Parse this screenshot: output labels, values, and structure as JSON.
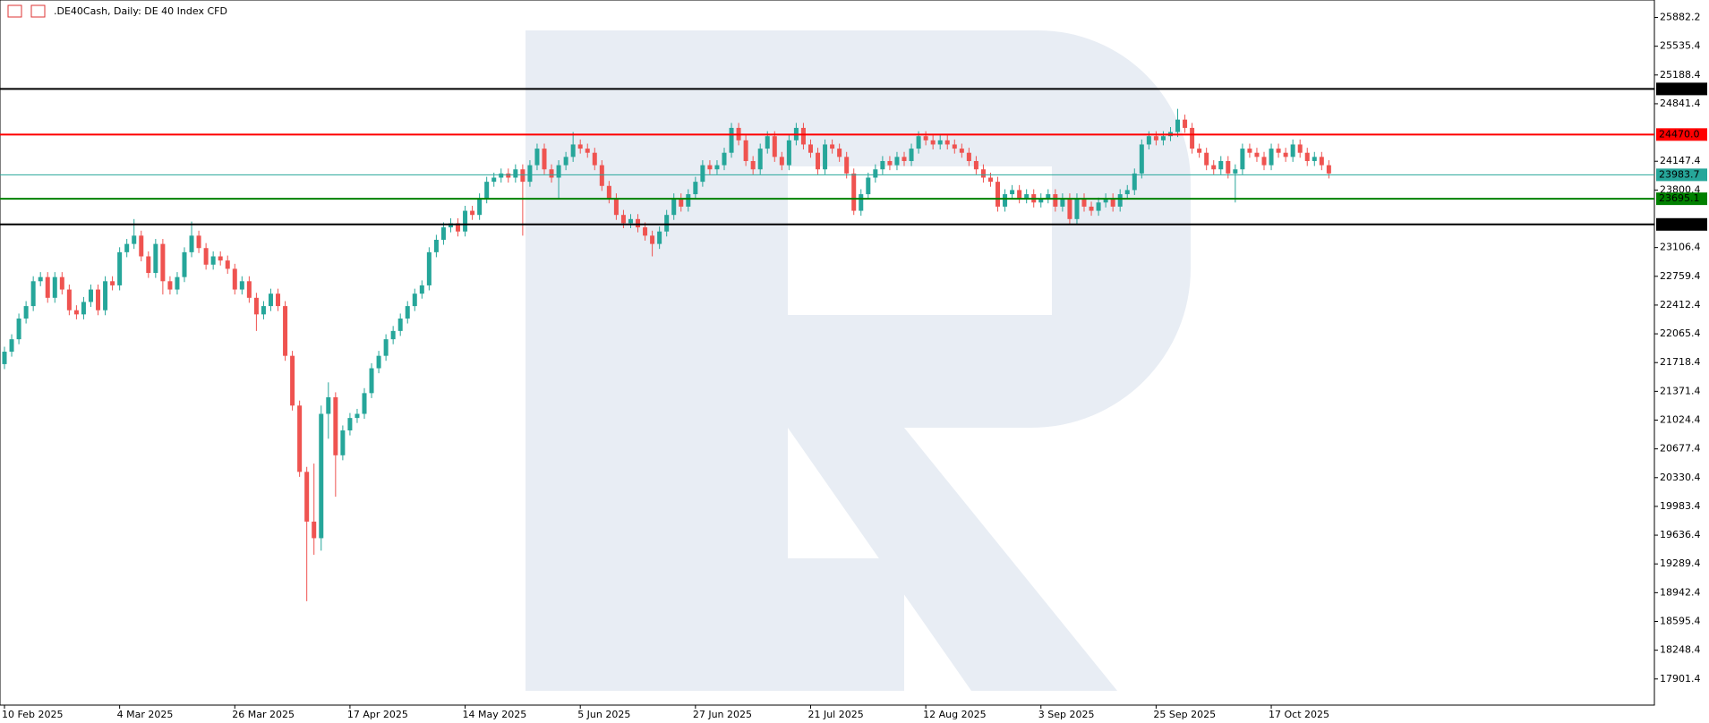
{
  "chart_data": {
    "type": "candlestick",
    "title": ".DE40Cash, Daily:  DE 40 Index CFD",
    "categories": [
      "10 Feb 2025",
      null,
      null,
      null,
      null,
      null,
      null,
      null,
      null,
      null,
      null,
      null,
      null,
      null,
      null,
      null,
      "4 Mar 2025",
      null,
      null,
      null,
      null,
      null,
      null,
      null,
      null,
      null,
      null,
      null,
      null,
      null,
      null,
      null,
      "26 Mar 2025",
      null,
      null,
      null,
      null,
      null,
      null,
      null,
      null,
      null,
      null,
      null,
      null,
      null,
      null,
      null,
      "17 Apr 2025",
      null,
      null,
      null,
      null,
      null,
      null,
      null,
      null,
      null,
      null,
      null,
      null,
      null,
      null,
      null,
      "14 May 2025",
      null,
      null,
      null,
      null,
      null,
      null,
      null,
      null,
      null,
      null,
      null,
      null,
      null,
      null,
      null,
      "5 Jun 2025",
      null,
      null,
      null,
      null,
      null,
      null,
      null,
      null,
      null,
      null,
      null,
      null,
      null,
      null,
      null,
      "27 Jun 2025",
      null,
      null,
      null,
      null,
      null,
      null,
      null,
      null,
      null,
      null,
      null,
      null,
      null,
      null,
      null,
      "21 Jul 2025",
      null,
      null,
      null,
      null,
      null,
      null,
      null,
      null,
      null,
      null,
      null,
      null,
      null,
      null,
      null,
      "12 Aug 2025",
      null,
      null,
      null,
      null,
      null,
      null,
      null,
      null,
      null,
      null,
      null,
      null,
      null,
      null,
      null,
      "3 Sep 2025",
      null,
      null,
      null,
      null,
      null,
      null,
      null,
      null,
      null,
      null,
      null,
      null,
      null,
      null,
      null,
      "25 Sep 2025",
      null,
      null,
      null,
      null,
      null,
      null,
      null,
      null,
      null,
      null,
      null,
      null,
      null,
      null,
      null,
      "17 Oct 2025",
      null,
      null,
      null,
      null,
      null,
      null,
      null,
      null
    ],
    "open": [
      21700,
      21850,
      22000,
      22250,
      22400,
      22700,
      22750,
      22500,
      22750,
      22600,
      22350,
      22300,
      22450,
      22600,
      22350,
      22700,
      22650,
      23050,
      23150,
      23250,
      23000,
      22800,
      23150,
      22700,
      22600,
      22750,
      23050,
      23250,
      23100,
      22900,
      23000,
      22950,
      22850,
      22600,
      22700,
      22500,
      22300,
      22400,
      22550,
      22400,
      21800,
      21200,
      20400,
      19800,
      19600,
      21100,
      21300,
      20600,
      20900,
      21050,
      21100,
      21350,
      21650,
      21800,
      22000,
      22100,
      22250,
      22400,
      22550,
      22650,
      23050,
      23200,
      23350,
      23400,
      23300,
      23550,
      23500,
      23700,
      23900,
      23950,
      24000,
      23950,
      24050,
      23900,
      24100,
      24300,
      24050,
      23950,
      24100,
      24200,
      24350,
      24300,
      24250,
      24100,
      23850,
      23700,
      23500,
      23400,
      23450,
      23350,
      23250,
      23150,
      23300,
      23500,
      23700,
      23600,
      23750,
      23900,
      24100,
      24050,
      24100,
      24250,
      24550,
      24400,
      24150,
      24050,
      24300,
      24450,
      24200,
      24100,
      24400,
      24550,
      24350,
      24250,
      24050,
      24350,
      24300,
      24200,
      24000,
      23550,
      23750,
      23950,
      24050,
      24150,
      24100,
      24200,
      24150,
      24300,
      24450,
      24400,
      24350,
      24400,
      24350,
      24300,
      24250,
      24150,
      24050,
      23950,
      23900,
      23600,
      23750,
      23800,
      23700,
      23750,
      23650,
      23700,
      23750,
      23600,
      23700,
      23450,
      23700,
      23600,
      23550,
      23650,
      23700,
      23600,
      23750,
      23800,
      24000,
      24350,
      24450,
      24400,
      24450,
      24500,
      24650,
      24550,
      24300,
      24250,
      24100,
      24050,
      24150,
      24000,
      24050,
      24300,
      24250,
      24200,
      24100,
      24300,
      24250,
      24200,
      24350,
      24250,
      24150,
      24200,
      24100
    ],
    "high": [
      21910,
      22060,
      22310,
      22460,
      22760,
      22810,
      22810,
      22810,
      22810,
      22660,
      22410,
      22510,
      22660,
      22660,
      22760,
      22760,
      23110,
      23210,
      23450,
      23310,
      23060,
      23210,
      23210,
      22760,
      22810,
      23110,
      23420,
      23310,
      23160,
      23060,
      23060,
      23010,
      22910,
      22760,
      22760,
      22560,
      22460,
      22610,
      22610,
      22460,
      21860,
      21260,
      20460,
      20500,
      21200,
      21480,
      21360,
      20960,
      21110,
      21160,
      21410,
      21710,
      21860,
      22060,
      22160,
      22310,
      22460,
      22610,
      22710,
      23110,
      23260,
      23410,
      23460,
      23460,
      23610,
      23610,
      23760,
      23960,
      24010,
      24060,
      24060,
      24110,
      24110,
      24160,
      24360,
      24360,
      24110,
      24160,
      24260,
      24500,
      24410,
      24360,
      24310,
      24160,
      23910,
      23760,
      23560,
      23510,
      23510,
      23410,
      23310,
      23360,
      23560,
      23760,
      23760,
      23810,
      23960,
      24160,
      24160,
      24160,
      24310,
      24610,
      24610,
      24460,
      24210,
      24360,
      24510,
      24510,
      24260,
      24460,
      24610,
      24610,
      24410,
      24310,
      24410,
      24410,
      24360,
      24260,
      24060,
      23810,
      24010,
      24110,
      24210,
      24210,
      24260,
      24260,
      24360,
      24510,
      24510,
      24460,
      24460,
      24460,
      24410,
      24360,
      24310,
      24210,
      24110,
      24010,
      23960,
      23810,
      23860,
      23860,
      23810,
      23810,
      23760,
      23810,
      23810,
      23760,
      23760,
      23760,
      23760,
      23660,
      23710,
      23760,
      23760,
      23810,
      23860,
      24060,
      24410,
      24510,
      24510,
      24510,
      24560,
      24780,
      24710,
      24610,
      24360,
      24310,
      24160,
      24210,
      24210,
      24110,
      24360,
      24360,
      24310,
      24260,
      24360,
      24360,
      24310,
      24410,
      24410,
      24310,
      24260,
      24260,
      24160
    ],
    "low": [
      21640,
      21790,
      21940,
      22190,
      22340,
      22640,
      22440,
      22440,
      22540,
      22290,
      22240,
      22240,
      22390,
      22290,
      22290,
      22590,
      22590,
      22990,
      23090,
      22940,
      22740,
      22740,
      22540,
      22540,
      22540,
      22690,
      22990,
      23040,
      22840,
      22840,
      22890,
      22790,
      22540,
      22540,
      22440,
      22100,
      22240,
      22340,
      22340,
      21740,
      21140,
      20340,
      18840,
      19400,
      19450,
      20800,
      20100,
      20540,
      20840,
      20990,
      21040,
      21290,
      21590,
      21740,
      21940,
      22040,
      22190,
      22340,
      22490,
      22590,
      22990,
      23140,
      23290,
      23240,
      23240,
      23440,
      23440,
      23640,
      23840,
      23890,
      23890,
      23890,
      23250,
      23840,
      24040,
      23990,
      23890,
      23700,
      24040,
      24140,
      24240,
      24190,
      24040,
      23790,
      23640,
      23440,
      23340,
      23340,
      23290,
      23190,
      23000,
      23090,
      23240,
      23440,
      23540,
      23540,
      23690,
      23840,
      23990,
      23990,
      24040,
      24190,
      24340,
      24090,
      23990,
      23990,
      24240,
      24140,
      24040,
      24040,
      24340,
      24290,
      24190,
      23990,
      23990,
      24240,
      24140,
      23940,
      23500,
      23490,
      23690,
      23890,
      23990,
      24040,
      24040,
      24090,
      24090,
      24240,
      24340,
      24290,
      24290,
      24290,
      24240,
      24190,
      24090,
      23990,
      23890,
      23840,
      23540,
      23540,
      23690,
      23640,
      23640,
      23590,
      23590,
      23640,
      23540,
      23540,
      23390,
      23390,
      23540,
      23490,
      23490,
      23590,
      23540,
      23540,
      23690,
      23740,
      23940,
      24290,
      24340,
      24340,
      24390,
      24440,
      24490,
      24240,
      24190,
      24040,
      23990,
      23990,
      23940,
      23650,
      23990,
      24190,
      24140,
      24040,
      24040,
      24190,
      24140,
      24140,
      24190,
      24090,
      24090,
      24040,
      23940
    ],
    "close": [
      21850,
      22000,
      22250,
      22400,
      22700,
      22750,
      22500,
      22750,
      22600,
      22350,
      22300,
      22450,
      22600,
      22350,
      22700,
      22650,
      23050,
      23150,
      23250,
      23000,
      22800,
      23150,
      22700,
      22600,
      22750,
      23050,
      23250,
      23100,
      22900,
      23000,
      22950,
      22850,
      22600,
      22700,
      22500,
      22300,
      22400,
      22550,
      22400,
      21800,
      21200,
      20400,
      19800,
      19600,
      21100,
      21300,
      20600,
      20900,
      21050,
      21100,
      21350,
      21650,
      21800,
      22000,
      22100,
      22250,
      22400,
      22550,
      22650,
      23050,
      23200,
      23350,
      23400,
      23300,
      23550,
      23500,
      23700,
      23900,
      23950,
      24000,
      23950,
      24050,
      23900,
      24100,
      24300,
      24050,
      23950,
      24100,
      24200,
      24350,
      24300,
      24250,
      24100,
      23850,
      23700,
      23500,
      23400,
      23450,
      23350,
      23250,
      23150,
      23300,
      23500,
      23700,
      23600,
      23750,
      23900,
      24100,
      24050,
      24100,
      24250,
      24550,
      24400,
      24150,
      24050,
      24300,
      24450,
      24200,
      24100,
      24400,
      24550,
      24350,
      24250,
      24050,
      24350,
      24300,
      24200,
      24000,
      23550,
      23750,
      23950,
      24050,
      24150,
      24100,
      24200,
      24150,
      24300,
      24450,
      24400,
      24350,
      24400,
      24350,
      24300,
      24250,
      24150,
      24050,
      23950,
      23900,
      23600,
      23750,
      23800,
      23700,
      23750,
      23650,
      23700,
      23750,
      23600,
      23700,
      23450,
      23700,
      23600,
      23550,
      23650,
      23700,
      23600,
      23750,
      23800,
      24000,
      24350,
      24450,
      24400,
      24450,
      24500,
      24650,
      24550,
      24300,
      24250,
      24100,
      24050,
      24150,
      24000,
      24050,
      24300,
      24250,
      24200,
      24100,
      24300,
      24250,
      24200,
      24350,
      24250,
      24150,
      24200,
      24100,
      24000
    ],
    "up_color": "#26a69a",
    "down_color": "#ef5350",
    "ylim": [
      17586,
      26093
    ],
    "yticks": [
      25882.2,
      25535.4,
      25188.4,
      24841.4,
      24147.4,
      23800.4,
      23106.4,
      22759.4,
      22412.4,
      22065.4,
      21718.4,
      21371.4,
      21024.4,
      20677.4,
      20330.4,
      19983.4,
      19636.4,
      19289.4,
      18942.4,
      18595.4,
      18248.4,
      17901.4
    ],
    "levels": [
      {
        "value": 25020,
        "label": "25020.0",
        "color": "#000000"
      },
      {
        "value": 24470,
        "label": "24470.0",
        "color": "#ff0000"
      },
      {
        "value": 23983.7,
        "label": "23983.7",
        "color": "#26a69a"
      },
      {
        "value": 23695.1,
        "label": "23695.1",
        "color": "#008000"
      },
      {
        "value": 23385.5,
        "label": "23385.5",
        "color": "#000000"
      }
    ]
  }
}
